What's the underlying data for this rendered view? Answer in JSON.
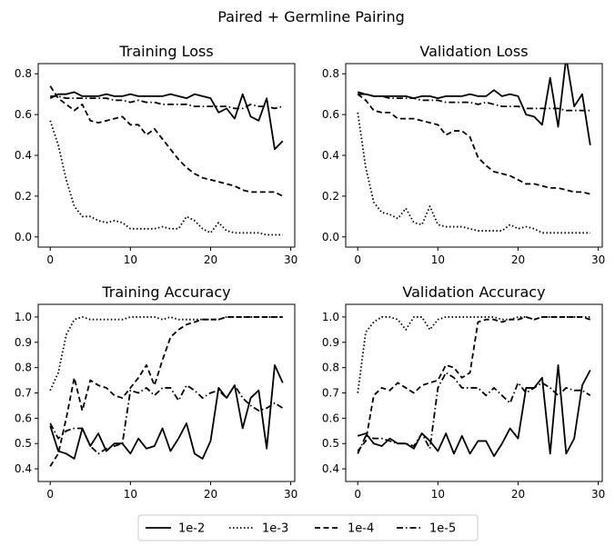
{
  "figure": {
    "title": "Paired + Germline Pairing"
  },
  "legend": {
    "placement": "bottom-center",
    "entries": [
      {
        "label": "1e-2",
        "dash": "solid"
      },
      {
        "label": "1e-3",
        "dash": "dotted"
      },
      {
        "label": "1e-4",
        "dash": "dashed"
      },
      {
        "label": "1e-5",
        "dash": "dashdot"
      }
    ]
  },
  "chart_data": [
    {
      "type": "line",
      "title": "Training Loss",
      "xlim": [
        -1.5,
        30.5
      ],
      "ylim": [
        -0.05,
        0.85
      ],
      "xticks": [
        0,
        10,
        20,
        30
      ],
      "yticks": [
        0.0,
        0.2,
        0.4,
        0.6,
        0.8
      ],
      "ytick_labels": [
        "0.0",
        "0.2",
        "0.4",
        "0.6",
        "0.8"
      ],
      "x": [
        0,
        1,
        2,
        3,
        4,
        5,
        6,
        7,
        8,
        9,
        10,
        11,
        12,
        13,
        14,
        15,
        16,
        17,
        18,
        19,
        20,
        21,
        22,
        23,
        24,
        25,
        26,
        27,
        28,
        29
      ],
      "series": [
        {
          "name": "1e-2",
          "dash": "solid",
          "values": [
            0.68,
            0.7,
            0.7,
            0.71,
            0.69,
            0.69,
            0.69,
            0.7,
            0.69,
            0.69,
            0.7,
            0.69,
            0.69,
            0.69,
            0.69,
            0.7,
            0.69,
            0.68,
            0.7,
            0.69,
            0.68,
            0.61,
            0.63,
            0.58,
            0.7,
            0.59,
            0.57,
            0.68,
            0.43,
            0.47
          ]
        },
        {
          "name": "1e-3",
          "dash": "dotted",
          "values": [
            0.57,
            0.45,
            0.28,
            0.15,
            0.1,
            0.1,
            0.08,
            0.07,
            0.08,
            0.07,
            0.04,
            0.04,
            0.04,
            0.04,
            0.05,
            0.04,
            0.04,
            0.1,
            0.08,
            0.04,
            0.02,
            0.07,
            0.03,
            0.02,
            0.02,
            0.02,
            0.02,
            0.01,
            0.01,
            0.01
          ]
        },
        {
          "name": "1e-4",
          "dash": "dashed",
          "values": [
            0.74,
            0.68,
            0.65,
            0.62,
            0.65,
            0.57,
            0.56,
            0.57,
            0.58,
            0.59,
            0.55,
            0.55,
            0.5,
            0.53,
            0.48,
            0.43,
            0.38,
            0.34,
            0.31,
            0.29,
            0.28,
            0.27,
            0.26,
            0.25,
            0.23,
            0.22,
            0.22,
            0.22,
            0.22,
            0.2
          ]
        },
        {
          "name": "1e-5",
          "dash": "dashdot",
          "values": [
            0.69,
            0.69,
            0.68,
            0.68,
            0.68,
            0.68,
            0.68,
            0.68,
            0.67,
            0.67,
            0.66,
            0.67,
            0.66,
            0.66,
            0.65,
            0.65,
            0.65,
            0.65,
            0.64,
            0.64,
            0.64,
            0.64,
            0.64,
            0.63,
            0.63,
            0.65,
            0.64,
            0.64,
            0.63,
            0.64
          ]
        }
      ]
    },
    {
      "type": "line",
      "title": "Validation Loss",
      "xlim": [
        -1.5,
        30.5
      ],
      "ylim": [
        -0.05,
        0.85
      ],
      "xticks": [
        0,
        10,
        20,
        30
      ],
      "yticks": [
        0.0,
        0.2,
        0.4,
        0.6,
        0.8
      ],
      "ytick_labels": [
        "0.0",
        "0.2",
        "0.4",
        "0.6",
        "0.8"
      ],
      "x": [
        0,
        1,
        2,
        3,
        4,
        5,
        6,
        7,
        8,
        9,
        10,
        11,
        12,
        13,
        14,
        15,
        16,
        17,
        18,
        19,
        20,
        21,
        22,
        23,
        24,
        25,
        26,
        27,
        28,
        29
      ],
      "series": [
        {
          "name": "1e-2",
          "dash": "solid",
          "values": [
            0.7,
            0.7,
            0.69,
            0.69,
            0.69,
            0.69,
            0.69,
            0.68,
            0.69,
            0.69,
            0.68,
            0.69,
            0.69,
            0.69,
            0.7,
            0.69,
            0.69,
            0.72,
            0.69,
            0.7,
            0.69,
            0.6,
            0.59,
            0.55,
            0.78,
            0.54,
            0.88,
            0.64,
            0.7,
            0.45
          ]
        },
        {
          "name": "1e-3",
          "dash": "dotted",
          "values": [
            0.61,
            0.34,
            0.17,
            0.12,
            0.11,
            0.09,
            0.14,
            0.07,
            0.06,
            0.15,
            0.06,
            0.05,
            0.05,
            0.05,
            0.04,
            0.03,
            0.03,
            0.03,
            0.03,
            0.06,
            0.04,
            0.05,
            0.04,
            0.02,
            0.02,
            0.02,
            0.02,
            0.02,
            0.02,
            0.02
          ]
        },
        {
          "name": "1e-4",
          "dash": "dashed",
          "values": [
            0.7,
            0.67,
            0.62,
            0.61,
            0.61,
            0.58,
            0.58,
            0.58,
            0.57,
            0.56,
            0.55,
            0.5,
            0.52,
            0.52,
            0.49,
            0.39,
            0.35,
            0.32,
            0.31,
            0.3,
            0.28,
            0.26,
            0.26,
            0.25,
            0.24,
            0.24,
            0.23,
            0.22,
            0.22,
            0.21
          ]
        },
        {
          "name": "1e-5",
          "dash": "dashdot",
          "values": [
            0.71,
            0.7,
            0.69,
            0.69,
            0.68,
            0.68,
            0.68,
            0.68,
            0.67,
            0.67,
            0.67,
            0.66,
            0.66,
            0.66,
            0.66,
            0.65,
            0.66,
            0.65,
            0.64,
            0.64,
            0.64,
            0.63,
            0.63,
            0.63,
            0.63,
            0.63,
            0.62,
            0.62,
            0.62,
            0.62
          ]
        }
      ]
    },
    {
      "type": "line",
      "title": "Training Accuracy",
      "xlim": [
        -1.5,
        30.5
      ],
      "ylim": [
        0.35,
        1.05
      ],
      "xticks": [
        0,
        10,
        20,
        30
      ],
      "yticks": [
        0.4,
        0.5,
        0.6,
        0.7,
        0.8,
        0.9,
        1.0
      ],
      "ytick_labels": [
        "0.4",
        "0.5",
        "0.6",
        "0.7",
        "0.8",
        "0.9",
        "1.0"
      ],
      "x": [
        0,
        1,
        2,
        3,
        4,
        5,
        6,
        7,
        8,
        9,
        10,
        11,
        12,
        13,
        14,
        15,
        16,
        17,
        18,
        19,
        20,
        21,
        22,
        23,
        24,
        25,
        26,
        27,
        28,
        29
      ],
      "series": [
        {
          "name": "1e-2",
          "dash": "solid",
          "values": [
            0.57,
            0.47,
            0.46,
            0.44,
            0.56,
            0.49,
            0.54,
            0.47,
            0.5,
            0.5,
            0.46,
            0.52,
            0.48,
            0.49,
            0.56,
            0.47,
            0.52,
            0.58,
            0.46,
            0.44,
            0.51,
            0.72,
            0.68,
            0.73,
            0.56,
            0.68,
            0.71,
            0.48,
            0.81,
            0.74
          ]
        },
        {
          "name": "1e-3",
          "dash": "dotted",
          "values": [
            0.71,
            0.78,
            0.93,
            0.99,
            1.0,
            0.99,
            0.99,
            0.99,
            0.99,
            0.99,
            1.0,
            1.0,
            1.0,
            1.0,
            0.99,
            1.0,
            0.99,
            0.99,
            0.99,
            0.99,
            0.99,
            0.99,
            1.0,
            1.0,
            1.0,
            1.0,
            1.0,
            1.0,
            1.0,
            1.0
          ]
        },
        {
          "name": "1e-4",
          "dash": "dashed",
          "values": [
            0.41,
            0.46,
            0.6,
            0.76,
            0.63,
            0.75,
            0.73,
            0.72,
            0.69,
            0.68,
            0.72,
            0.76,
            0.81,
            0.73,
            0.83,
            0.92,
            0.95,
            0.97,
            0.98,
            0.99,
            0.99,
            0.99,
            1.0,
            1.0,
            1.0,
            1.0,
            1.0,
            1.0,
            1.0,
            1.0
          ]
        },
        {
          "name": "1e-5",
          "dash": "dashdot",
          "values": [
            0.58,
            0.52,
            0.55,
            0.56,
            0.56,
            0.49,
            0.46,
            0.48,
            0.49,
            0.5,
            0.71,
            0.7,
            0.72,
            0.69,
            0.72,
            0.72,
            0.67,
            0.73,
            0.71,
            0.68,
            0.7,
            0.71,
            0.68,
            0.73,
            0.68,
            0.65,
            0.63,
            0.64,
            0.66,
            0.64
          ]
        }
      ]
    },
    {
      "type": "line",
      "title": "Validation Accuracy",
      "xlim": [
        -1.5,
        30.5
      ],
      "ylim": [
        0.35,
        1.05
      ],
      "xticks": [
        0,
        10,
        20,
        30
      ],
      "yticks": [
        0.4,
        0.5,
        0.6,
        0.7,
        0.8,
        0.9,
        1.0
      ],
      "ytick_labels": [
        "0.4",
        "0.5",
        "0.6",
        "0.7",
        "0.8",
        "0.9",
        "1.0"
      ],
      "x": [
        0,
        1,
        2,
        3,
        4,
        5,
        6,
        7,
        8,
        9,
        10,
        11,
        12,
        13,
        14,
        15,
        16,
        17,
        18,
        19,
        20,
        21,
        22,
        23,
        24,
        25,
        26,
        27,
        28,
        29
      ],
      "series": [
        {
          "name": "1e-2",
          "dash": "solid",
          "values": [
            0.53,
            0.54,
            0.5,
            0.49,
            0.52,
            0.5,
            0.5,
            0.48,
            0.54,
            0.51,
            0.47,
            0.54,
            0.46,
            0.53,
            0.46,
            0.51,
            0.51,
            0.45,
            0.5,
            0.56,
            0.52,
            0.72,
            0.72,
            0.76,
            0.46,
            0.81,
            0.46,
            0.52,
            0.73,
            0.79
          ]
        },
        {
          "name": "1e-3",
          "dash": "dotted",
          "values": [
            0.7,
            0.94,
            0.98,
            1.0,
            1.0,
            0.99,
            0.95,
            1.0,
            1.0,
            0.95,
            0.99,
            1.0,
            1.0,
            1.0,
            1.0,
            1.0,
            1.0,
            1.0,
            0.99,
            0.99,
            1.0,
            1.0,
            0.99,
            1.0,
            1.0,
            1.0,
            1.0,
            1.0,
            1.0,
            1.0
          ]
        },
        {
          "name": "1e-4",
          "dash": "dashed",
          "values": [
            0.47,
            0.51,
            0.69,
            0.72,
            0.71,
            0.74,
            0.72,
            0.7,
            0.73,
            0.74,
            0.75,
            0.81,
            0.8,
            0.76,
            0.78,
            0.98,
            0.99,
            0.99,
            0.98,
            0.99,
            0.99,
            1.0,
            0.99,
            1.0,
            1.0,
            1.0,
            1.0,
            1.0,
            1.0,
            0.99
          ]
        },
        {
          "name": "1e-5",
          "dash": "dashdot",
          "values": [
            0.46,
            0.53,
            0.52,
            0.52,
            0.51,
            0.5,
            0.5,
            0.49,
            0.54,
            0.48,
            0.72,
            0.78,
            0.76,
            0.72,
            0.72,
            0.72,
            0.69,
            0.72,
            0.69,
            0.66,
            0.74,
            0.7,
            0.72,
            0.74,
            0.72,
            0.69,
            0.72,
            0.71,
            0.71,
            0.69
          ]
        }
      ]
    }
  ]
}
